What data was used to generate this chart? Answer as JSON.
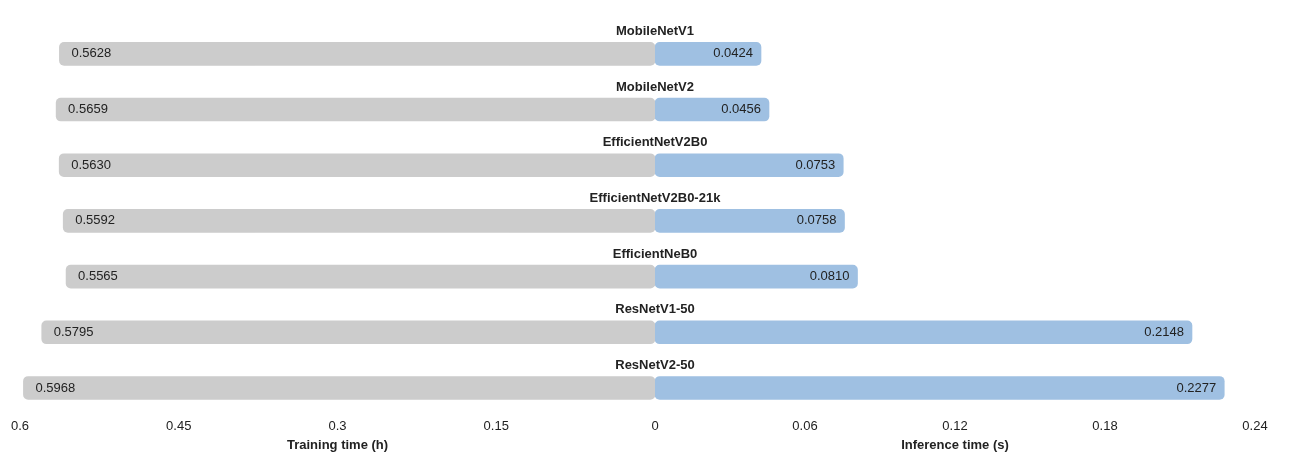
{
  "chart_data": [
    {
      "type": "bar",
      "orientation": "horizontal",
      "categories": [
        "MobileNetV1",
        "MobileNetV2",
        "EfficientNetV2B0",
        "EfficientNetV2B0-21k",
        "EfficientNeB0",
        "ResNetV1-50",
        "ResNetV2-50"
      ],
      "values": [
        0.5628,
        0.5659,
        0.563,
        0.5592,
        0.5565,
        0.5795,
        0.5968
      ],
      "value_labels": [
        "0.5628",
        "0.5659",
        "0.5630",
        "0.5592",
        "0.5565",
        "0.5795",
        "0.5968"
      ],
      "color": "#cccccc",
      "xlabel": "Training time (h)",
      "xlim": [
        0.6,
        0
      ],
      "xticks": [
        0.6,
        0.45,
        0.3,
        0.15,
        0
      ],
      "grid": false,
      "legend": false,
      "tick_labels": "x"
    },
    {
      "type": "bar",
      "orientation": "horizontal",
      "categories": [
        null,
        null,
        null,
        null,
        null,
        null,
        null
      ],
      "values": [
        0.0424,
        0.0456,
        0.0753,
        0.0758,
        0.081,
        0.2148,
        0.2277
      ],
      "value_labels": [
        "0.0424",
        "0.0456",
        "0.0753",
        "0.0758",
        "0.0810",
        "0.2148",
        "0.2277"
      ],
      "color": "#9fc0e2",
      "xlabel": "Inference time (s)",
      "xlim": [
        0,
        0.24
      ],
      "xticks": [
        0.06,
        0.12,
        0.18,
        0.24
      ],
      "grid": false,
      "legend": false,
      "tick_labels": "x"
    }
  ]
}
